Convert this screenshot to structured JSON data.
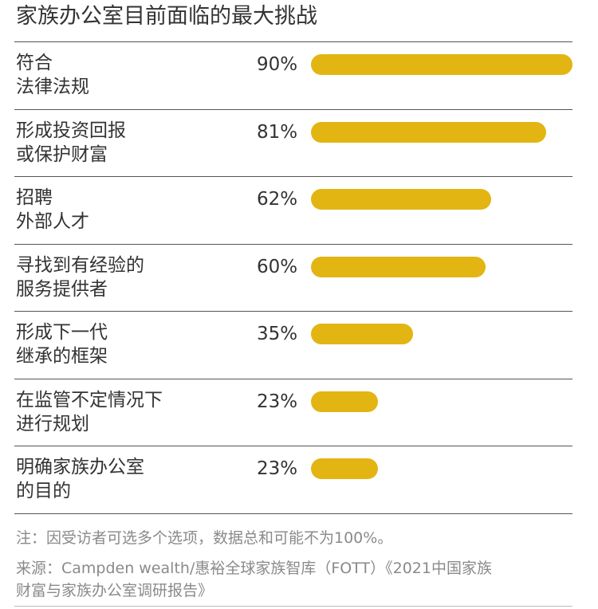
{
  "title": "家族办公室目前面临的最大挑战",
  "chart_data": {
    "type": "bar",
    "orientation": "horizontal",
    "title": "家族办公室目前面临的最大挑战",
    "categories": [
      [
        "符合",
        "法律法规"
      ],
      [
        "形成投资回报",
        "或保护财富"
      ],
      [
        "招聘",
        "外部人才"
      ],
      [
        "寻找到有经验的",
        "服务提供者"
      ],
      [
        "形成下一代",
        "继承的框架"
      ],
      [
        "在监管不定情况下",
        "进行规划"
      ],
      [
        "明确家族办公室",
        "的目的"
      ]
    ],
    "values": [
      90,
      81,
      62,
      60,
      35,
      23,
      23
    ],
    "value_labels": [
      "90%",
      "81%",
      "62%",
      "60%",
      "35%",
      "23%",
      "23%"
    ],
    "xlim": [
      0,
      90
    ],
    "bar_color": "#e2b512",
    "grid": false,
    "legend": "none"
  },
  "notes": {
    "note": "注：因受访者可选多个选项，数据总和可能不为100%。",
    "source_line1": "来源：Campden wealth/惠裕全球家族智库（FOTT）《2021中国家族",
    "source_line2": "财富与家族办公室调研报告》"
  }
}
